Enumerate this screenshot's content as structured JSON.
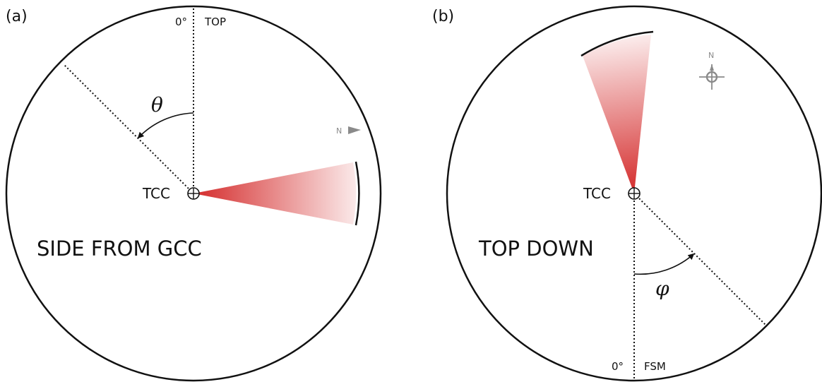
{
  "panel_a": {
    "label": "(a)",
    "zero_label": "0°",
    "top_label": "TOP",
    "angle_symbol": "θ",
    "north_label": "N",
    "center_label": "TCC",
    "caption": "SIDE FROM GCC"
  },
  "panel_b": {
    "label": "(b)",
    "north_label": "N",
    "center_label": "TCC",
    "caption": "TOP DOWN",
    "angle_symbol": "φ",
    "zero_label": "0°",
    "fsm_label": "FSM"
  },
  "colors": {
    "wedge_red": "#d42b2b",
    "outline": "#111111",
    "north_gray": "#8a8a8a"
  }
}
